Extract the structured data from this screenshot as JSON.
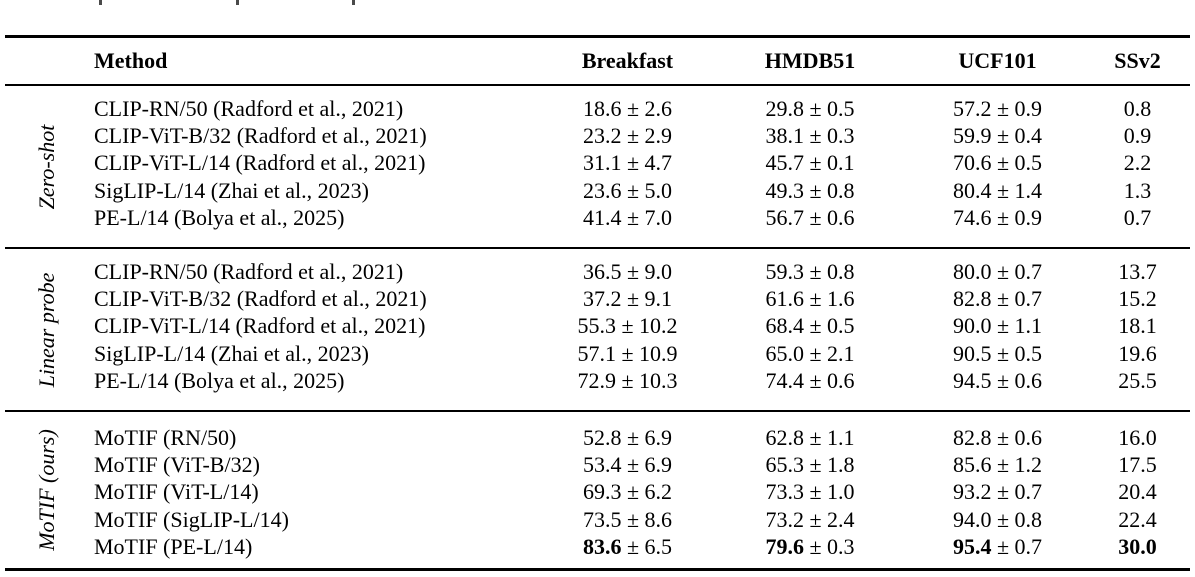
{
  "table": {
    "header": {
      "method": "Method",
      "breakfast": "Breakfast",
      "hmdb51": "HMDB51",
      "ucf101": "UCF101",
      "ssv2": "SSv2"
    },
    "groups": [
      {
        "label": "Zero-shot",
        "rows": [
          {
            "method": "CLIP-RN/50 (Radford et al., 2021)",
            "breakfast": "18.6 ± 2.6",
            "hmdb51": "29.8 ± 0.5",
            "ucf101": "57.2 ± 0.9",
            "ssv2": "0.8"
          },
          {
            "method": "CLIP-ViT-B/32 (Radford et al., 2021)",
            "breakfast": "23.2 ± 2.9",
            "hmdb51": "38.1 ± 0.3",
            "ucf101": "59.9 ± 0.4",
            "ssv2": "0.9"
          },
          {
            "method": "CLIP-ViT-L/14 (Radford et al., 2021)",
            "breakfast": "31.1 ± 4.7",
            "hmdb51": "45.7 ± 0.1",
            "ucf101": "70.6 ± 0.5",
            "ssv2": "2.2"
          },
          {
            "method": "SigLIP-L/14 (Zhai et al., 2023)",
            "breakfast": "23.6 ± 5.0",
            "hmdb51": "49.3 ± 0.8",
            "ucf101": "80.4 ± 1.4",
            "ssv2": "1.3"
          },
          {
            "method": "PE-L/14 (Bolya et al., 2025)",
            "breakfast": "41.4 ± 7.0",
            "hmdb51": "56.7 ± 0.6",
            "ucf101": "74.6 ± 0.9",
            "ssv2": "0.7"
          }
        ]
      },
      {
        "label": "Linear probe",
        "rows": [
          {
            "method": "CLIP-RN/50 (Radford et al., 2021)",
            "breakfast": "36.5 ± 9.0",
            "hmdb51": "59.3 ± 0.8",
            "ucf101": "80.0 ± 0.7",
            "ssv2": "13.7"
          },
          {
            "method": "CLIP-ViT-B/32 (Radford et al., 2021)",
            "breakfast": "37.2 ± 9.1",
            "hmdb51": "61.6 ± 1.6",
            "ucf101": "82.8 ± 0.7",
            "ssv2": "15.2"
          },
          {
            "method": "CLIP-ViT-L/14 (Radford et al., 2021)",
            "breakfast": "55.3 ± 10.2",
            "hmdb51": "68.4 ± 0.5",
            "ucf101": "90.0 ± 1.1",
            "ssv2": "18.1"
          },
          {
            "method": "SigLIP-L/14 (Zhai et al., 2023)",
            "breakfast": "57.1 ± 10.9",
            "hmdb51": "65.0 ± 2.1",
            "ucf101": "90.5 ± 0.5",
            "ssv2": "19.6"
          },
          {
            "method": "PE-L/14 (Bolya et al., 2025)",
            "breakfast": "72.9 ± 10.3",
            "hmdb51": "74.4 ± 0.6",
            "ucf101": "94.5 ± 0.6",
            "ssv2": "25.5"
          }
        ]
      },
      {
        "label": "MoTIF (ours)",
        "rows": [
          {
            "method": "MoTIF (RN/50)",
            "breakfast": "52.8 ± 6.9",
            "hmdb51": "62.8 ± 1.1",
            "ucf101": "82.8 ± 0.6",
            "ssv2": "16.0"
          },
          {
            "method": "MoTIF (ViT-B/32)",
            "breakfast": "53.4 ± 6.9",
            "hmdb51": "65.3 ± 1.8",
            "ucf101": "85.6 ± 1.2",
            "ssv2": "17.5"
          },
          {
            "method": "MoTIF (ViT-L/14)",
            "breakfast": "69.3 ± 6.2",
            "hmdb51": "73.3 ± 1.0",
            "ucf101": "93.2 ± 0.7",
            "ssv2": "20.4"
          },
          {
            "method": "MoTIF (SigLIP-L/14)",
            "breakfast": "73.5 ± 8.6",
            "hmdb51": "73.2 ± 2.4",
            "ucf101": "94.0 ± 0.8",
            "ssv2": "22.4"
          },
          {
            "method": "MoTIF (PE-L/14)",
            "breakfast_bold": "83.6",
            "breakfast_rest": " ± 6.5",
            "hmdb51_bold": "79.6",
            "hmdb51_rest": " ± 0.3",
            "ucf101_bold": "95.4",
            "ucf101_rest": " ± 0.7",
            "ssv2_bold": "30.0"
          }
        ]
      }
    ]
  }
}
